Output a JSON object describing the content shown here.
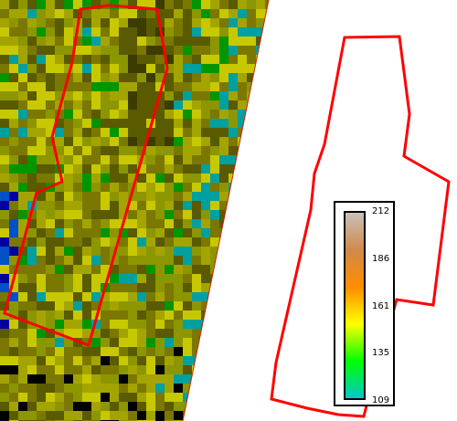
{
  "legend": {
    "tick_labels": [
      "212",
      "186",
      "161",
      "135",
      "109"
    ],
    "colors": [
      "#c9c1b9",
      "#d08a4a",
      "#ff8c00",
      "#ffff00",
      "#00ff00",
      "#00c8c8"
    ]
  },
  "map": {
    "raster_palette": [
      "#c8c800",
      "#a4a400",
      "#8c9600",
      "#7a7800",
      "#5a5a00",
      "#3c3c00",
      "#009600",
      "#00a0a0",
      "#0050c8",
      "#0000a0",
      "#000000"
    ],
    "outline_color": "#ff0000"
  }
}
